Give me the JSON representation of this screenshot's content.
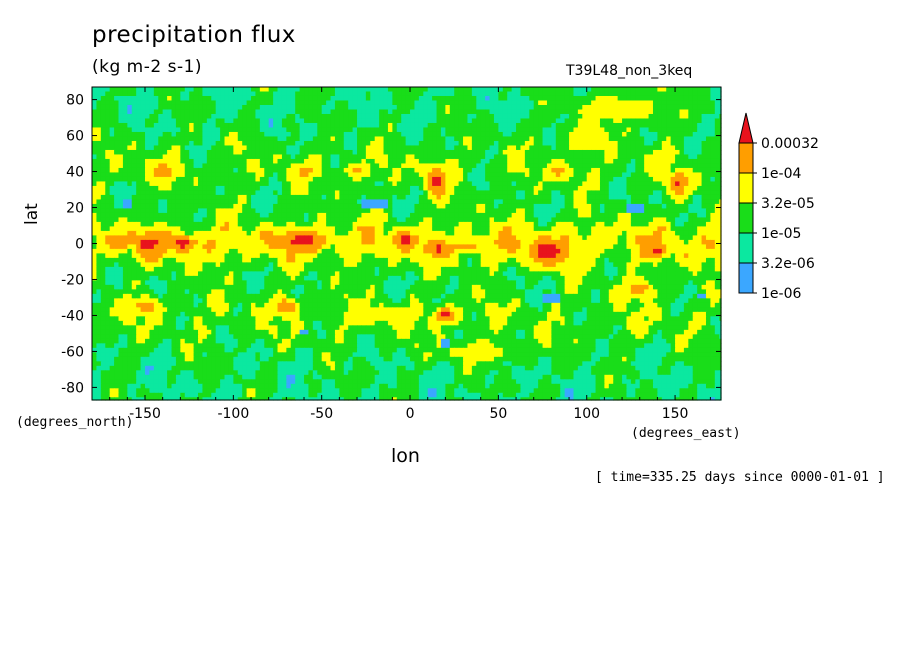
{
  "chart_data": {
    "type": "heatmap",
    "title": "precipitation flux",
    "units": "(kg m-2 s-1)",
    "run_id": "T39L48_non_3keq",
    "xlabel": "lon",
    "ylabel": "lat",
    "x_units": "(degrees_east)",
    "y_units": "(degrees_north)",
    "time_info": "[ time=335.25 days since 0000-01-01 ]",
    "xlim": [
      -180,
      176
    ],
    "ylim": [
      -87,
      87
    ],
    "x_ticks": [
      -150,
      -100,
      -50,
      0,
      50,
      100,
      150
    ],
    "y_ticks": [
      -80,
      -60,
      -40,
      -20,
      0,
      20,
      40,
      60,
      80
    ],
    "x_tick_labels": [
      "-150",
      "-100",
      "-50",
      "0",
      "50",
      "100",
      "150"
    ],
    "y_tick_labels": [
      "-80",
      "-60",
      "-40",
      "-20",
      "0",
      "20",
      "40",
      "60",
      "80"
    ],
    "levels": [
      1e-06,
      3.2e-06,
      1e-05,
      3.2e-05,
      0.0001,
      0.00032
    ],
    "legend": {
      "labels": [
        "1e-06",
        "3.2e-06",
        "1e-05",
        "3.2e-05",
        "1e-04",
        "0.00032"
      ],
      "colors": [
        "#ffffff",
        "#3ba7ff",
        "#0be8a0",
        "#19dd19",
        "#ffff00",
        "#ff9e00",
        "#e8131d"
      ],
      "placement": "right"
    },
    "regions": [
      {
        "lon": -163,
        "lat": 1,
        "value": 0.0003,
        "rlon": 7,
        "rlat": 4
      },
      {
        "lon": -148,
        "lat": 0,
        "value": 0.0005,
        "rlon": 8,
        "rlat": 6
      },
      {
        "lon": -128,
        "lat": 0,
        "value": 0.0005,
        "rlon": 8,
        "rlat": 5
      },
      {
        "lon": -107,
        "lat": 1,
        "value": 0.0001,
        "rlon": 5,
        "rlat": 4
      },
      {
        "lon": -60,
        "lat": 2,
        "value": 0.0005,
        "rlon": 15,
        "rlat": 5
      },
      {
        "lon": -80,
        "lat": 1,
        "value": 0.0001,
        "rlon": 5,
        "rlat": 4
      },
      {
        "lon": -3,
        "lat": 2,
        "value": 0.0004,
        "rlon": 6,
        "rlat": 4
      },
      {
        "lon": 15,
        "lat": -3,
        "value": 0.0004,
        "rlon": 7,
        "rlat": 4
      },
      {
        "lon": 30,
        "lat": -2,
        "value": 0.0003,
        "rlon": 8,
        "rlat": 3
      },
      {
        "lon": 50,
        "lat": 0,
        "value": 0.0001,
        "rlon": 14,
        "rlat": 4
      },
      {
        "lon": 78,
        "lat": -5,
        "value": 0.0005,
        "rlon": 12,
        "rlat": 8
      },
      {
        "lon": 140,
        "lat": -4,
        "value": 0.0004,
        "rlon": 5,
        "rlat": 4
      },
      {
        "lon": 170,
        "lat": 0,
        "value": 0.00011,
        "rlon": 6,
        "rlat": 4
      },
      {
        "lon": 15,
        "lat": 35,
        "value": 0.0004,
        "rlon": 6,
        "rlat": 9
      },
      {
        "lon": 152,
        "lat": 33,
        "value": 0.0004,
        "rlon": 6,
        "rlat": 7
      },
      {
        "lon": 20,
        "lat": -40,
        "value": 0.0004,
        "rlon": 7,
        "rlat": 5
      },
      {
        "lon": -70,
        "lat": -35,
        "value": 0.00025,
        "rlon": 7,
        "rlat": 5
      },
      {
        "lon": -150,
        "lat": -35,
        "value": 0.00015,
        "rlon": 10,
        "rlat": 5
      },
      {
        "lon": 130,
        "lat": -25,
        "value": 0.00015,
        "rlon": 10,
        "rlat": 6
      },
      {
        "lon": -140,
        "lat": 40,
        "value": 0.00015,
        "rlon": 10,
        "rlat": 5
      },
      {
        "lon": -60,
        "lat": 40,
        "value": 0.00012,
        "rlon": 8,
        "rlat": 4
      },
      {
        "lon": -30,
        "lat": 40,
        "value": 0.00012,
        "rlon": 8,
        "rlat": 4
      },
      {
        "lon": 85,
        "lat": 40,
        "value": 0.00012,
        "rlon": 8,
        "rlat": 5
      },
      {
        "lon": 100,
        "lat": 60,
        "value": 6e-05,
        "rlon": 15,
        "rlat": 12
      },
      {
        "lon": 120,
        "lat": 75,
        "value": 6e-05,
        "rlon": 30,
        "rlat": 10
      },
      {
        "lon": -20,
        "lat": -40,
        "value": 6e-05,
        "rlon": 20,
        "rlat": 6
      },
      {
        "lon": 40,
        "lat": -60,
        "value": 6e-05,
        "rlon": 25,
        "rlat": 6
      },
      {
        "lon": 20,
        "lat": -55,
        "value": 2e-06,
        "rlon": 4,
        "rlat": 3
      },
      {
        "lon": 80,
        "lat": -30,
        "value": 2e-06,
        "rlon": 6,
        "rlat": 3
      },
      {
        "lon": -20,
        "lat": 22,
        "value": 2e-06,
        "rlon": 8,
        "rlat": 3
      },
      {
        "lon": -160,
        "lat": 22,
        "value": 2e-06,
        "rlon": 4,
        "rlat": 3
      },
      {
        "lon": 128,
        "lat": 20,
        "value": 2e-06,
        "rlon": 6,
        "rlat": 3
      },
      {
        "lon": -60,
        "lat": -50,
        "value": 2e-06,
        "rlon": 3,
        "rlat": 2
      },
      {
        "lon": 165,
        "lat": -30,
        "value": 2e-06,
        "rlon": 3,
        "rlat": 2
      }
    ]
  }
}
